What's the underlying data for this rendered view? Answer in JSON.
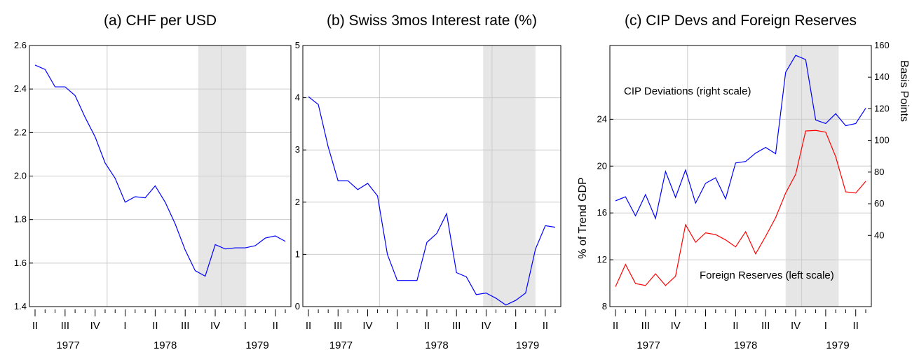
{
  "chart_data": [
    {
      "type": "line",
      "title": "(a) CHF per USD",
      "categories": [
        "II",
        null,
        null,
        "III",
        null,
        null,
        "IV",
        null,
        null,
        "I",
        null,
        null,
        "II",
        null,
        null,
        "III",
        null,
        null,
        "IV",
        null,
        null,
        "I",
        null,
        null,
        "II",
        null
      ],
      "x_group_labels": [
        "1977",
        "1978",
        "1979"
      ],
      "values": [
        2.51,
        2.49,
        2.41,
        2.41,
        2.37,
        2.27,
        2.18,
        2.06,
        1.99,
        1.88,
        1.905,
        1.9,
        1.955,
        1.88,
        1.78,
        1.66,
        1.565,
        1.54,
        1.685,
        1.665,
        1.67,
        1.67,
        1.68,
        1.715,
        1.725,
        1.7
      ],
      "color": "#0000ff",
      "ylim": [
        1.4,
        2.6
      ],
      "yticks": [
        1.4,
        1.6,
        1.8,
        {
          "value": 2,
          "label": "2.0"
        },
        2.2,
        2.4,
        2.6
      ],
      "grid": true
    },
    {
      "type": "line",
      "title": "(b) Swiss 3mos Interest rate (%)",
      "categories": [
        "II",
        null,
        null,
        "III",
        null,
        null,
        "IV",
        null,
        null,
        "I",
        null,
        null,
        "II",
        null,
        null,
        "III",
        null,
        null,
        "IV",
        null,
        null,
        "I",
        null,
        null,
        "II",
        null
      ],
      "x_group_labels": [
        "1977",
        "1978",
        "1979"
      ],
      "values": [
        4.02,
        3.87,
        3.06,
        2.41,
        2.41,
        2.24,
        2.36,
        2.12,
        1.0,
        0.5,
        0.5,
        0.5,
        1.23,
        1.4,
        1.78,
        0.65,
        0.57,
        0.23,
        0.26,
        0.16,
        0.03,
        0.12,
        0.26,
        1.1,
        1.55,
        1.52
      ],
      "color": "#0000ff",
      "ylim": [
        0,
        5
      ],
      "yticks": [
        0,
        1,
        2,
        3,
        4,
        5
      ],
      "grid": true
    },
    {
      "type": "line",
      "title": "(c) CIP Devs and Foreign Reserves",
      "categories": [
        "II",
        null,
        null,
        "III",
        null,
        null,
        "IV",
        null,
        null,
        "I",
        null,
        null,
        "II",
        null,
        null,
        "III",
        null,
        null,
        "IV",
        null,
        null,
        "I",
        null,
        null,
        "II",
        null
      ],
      "x_group_labels": [
        "1977",
        "1978",
        "1979"
      ],
      "y_label": "% of Trend GDP",
      "y2_label": "Basis Points",
      "ylim": [
        8,
        30.3
      ],
      "yticks": [
        8,
        12,
        16,
        20,
        24
      ],
      "y2lim": [
        -5,
        160
      ],
      "y2ticks": [
        40,
        60,
        80,
        100,
        120,
        140,
        160
      ],
      "grid": true,
      "series": [
        {
          "color": "#ff0000",
          "values": [
            9.7,
            11.6,
            9.97,
            9.8,
            10.8,
            9.8,
            10.6,
            15.0,
            13.5,
            14.3,
            14.15,
            13.7,
            13.1,
            14.4,
            12.5,
            14.0,
            15.6,
            17.7,
            19.3,
            23.0,
            23.05,
            22.9,
            20.8,
            17.8,
            17.7,
            18.7
          ]
        },
        {
          "color": "#0000ff",
          "axis": "y2",
          "values": [
            61.8,
            64.4,
            52.4,
            65.8,
            50.7,
            80.4,
            64,
            81.3,
            60.4,
            72.9,
            76.4,
            63.1,
            85.8,
            86.7,
            92,
            95.6,
            91.6,
            143.1,
            153.8,
            151.1,
            112.9,
            110.7,
            116.9,
            109.3,
            110.7,
            120.4
          ]
        }
      ],
      "annotations": [
        {
          "text": "CIP Deviations (right scale)",
          "color": "#0000ff"
        },
        {
          "text": "Foreign Reserves (left scale)",
          "color": "#ff0000"
        }
      ]
    }
  ]
}
